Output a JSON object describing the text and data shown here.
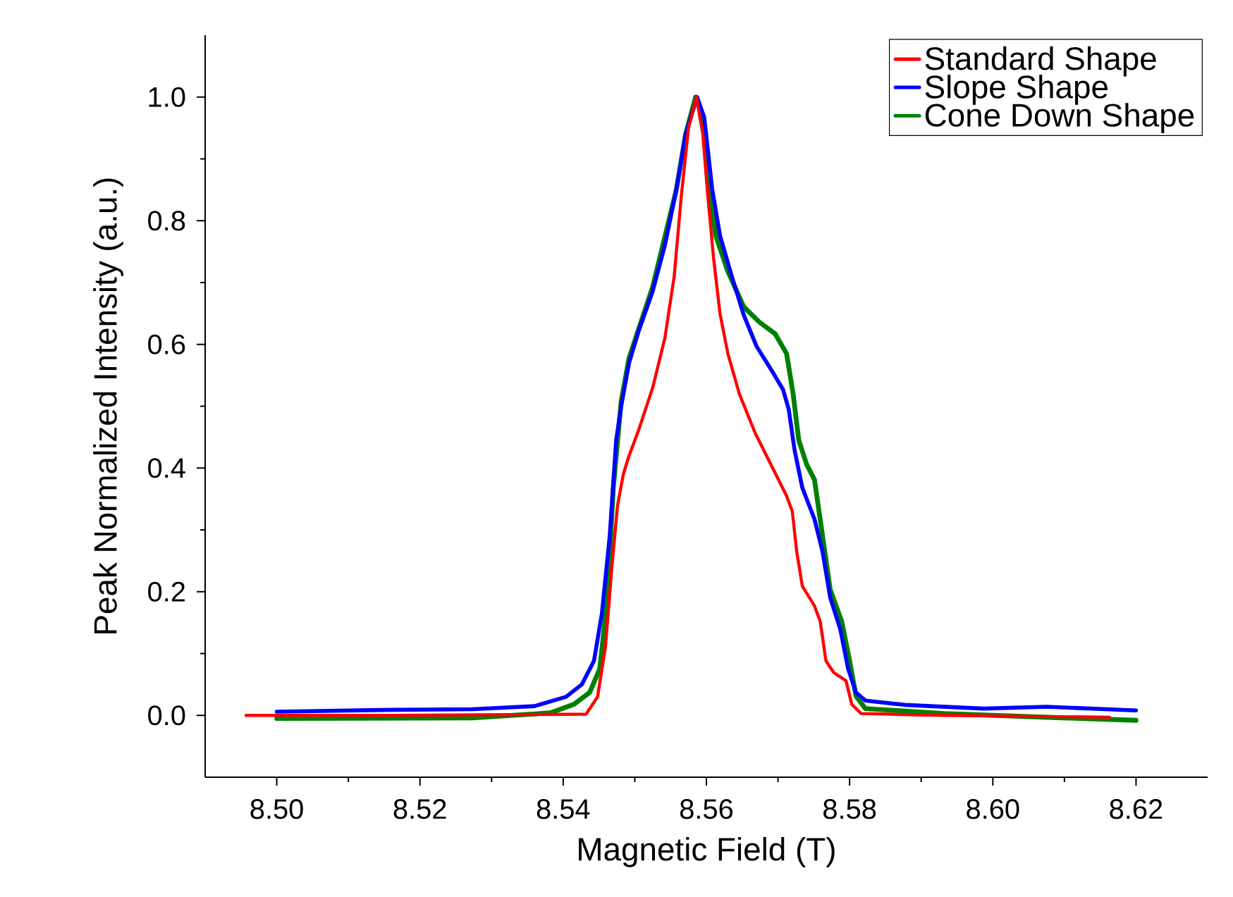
{
  "chart_data": {
    "type": "line",
    "xlabel": "Magnetic Field (T)",
    "ylabel": "Peak Normalized Intensity (a.u.)",
    "xlim": [
      8.49,
      8.63
    ],
    "ylim": [
      -0.1,
      1.1
    ],
    "xticks": [
      {
        "value": 8.5,
        "label": "8.50"
      },
      {
        "value": 8.52,
        "label": "8.52"
      },
      {
        "value": 8.54,
        "label": "8.54"
      },
      {
        "value": 8.56,
        "label": "8.56"
      },
      {
        "value": 8.58,
        "label": "8.58"
      },
      {
        "value": 8.6,
        "label": "8.60"
      },
      {
        "value": 8.62,
        "label": "8.62"
      }
    ],
    "yticks": [
      {
        "value": 0,
        "label": "0.0"
      },
      {
        "value": 0.2,
        "label": "0.2"
      },
      {
        "value": 0.4,
        "label": "0.4"
      },
      {
        "value": 0.6,
        "label": "0.6"
      },
      {
        "value": 0.8,
        "label": "0.8"
      },
      {
        "value": 1.0,
        "label": "1.0"
      }
    ],
    "legend": "top right",
    "grid": false,
    "series": [
      {
        "name": "Standard Shape",
        "color": "#ff0000",
        "x": [
          8.4957,
          8.5163,
          8.5432,
          8.5448,
          8.5459,
          8.5468,
          8.5476,
          8.5484,
          8.5492,
          8.5505,
          8.5525,
          8.5542,
          8.5555,
          8.5565,
          8.5575,
          8.5586,
          8.5595,
          8.5602,
          8.561,
          8.5619,
          8.563,
          8.5646,
          8.5668,
          8.569,
          8.5712,
          8.572,
          8.5726,
          8.5734,
          8.5751,
          8.5759,
          8.5767,
          8.5778,
          8.5795,
          8.5803,
          8.5816,
          8.5932,
          8.6163
        ],
        "values": [
          0,
          0,
          0.002,
          0.03,
          0.11,
          0.24,
          0.34,
          0.39,
          0.42,
          0.46,
          0.53,
          0.61,
          0.71,
          0.84,
          0.95,
          1.0,
          0.94,
          0.84,
          0.74,
          0.65,
          0.585,
          0.52,
          0.457,
          0.406,
          0.355,
          0.33,
          0.266,
          0.209,
          0.177,
          0.152,
          0.088,
          0.069,
          0.056,
          0.018,
          0.003,
          0,
          -0.003
        ]
      },
      {
        "name": "Slope Shape",
        "color": "#0000ff",
        "x": [
          8.5,
          8.5163,
          8.5273,
          8.536,
          8.5404,
          8.5426,
          8.5443,
          8.5454,
          8.5465,
          8.5474,
          8.5481,
          8.5492,
          8.5505,
          8.5525,
          8.5542,
          8.5558,
          8.5571,
          8.5587,
          8.5597,
          8.5608,
          8.5619,
          8.5635,
          8.5652,
          8.567,
          8.569,
          8.5707,
          8.5715,
          8.5723,
          8.5734,
          8.5751,
          8.5762,
          8.5773,
          8.5787,
          8.5798,
          8.5809,
          8.5822,
          8.5877,
          8.5987,
          8.6075,
          8.62
        ],
        "values": [
          0.006,
          0.009,
          0.01,
          0.015,
          0.03,
          0.05,
          0.088,
          0.164,
          0.29,
          0.445,
          0.5,
          0.57,
          0.62,
          0.686,
          0.76,
          0.85,
          0.94,
          1.0,
          0.967,
          0.852,
          0.776,
          0.712,
          0.648,
          0.597,
          0.56,
          0.527,
          0.495,
          0.43,
          0.368,
          0.317,
          0.266,
          0.19,
          0.139,
          0.075,
          0.037,
          0.024,
          0.017,
          0.011,
          0.014,
          0.008
        ]
      },
      {
        "name": "Cone Down Shape",
        "color": "#008000",
        "x": [
          8.5,
          8.5273,
          8.5382,
          8.5415,
          8.5437,
          8.5451,
          8.5462,
          8.547,
          8.5481,
          8.5492,
          8.5525,
          8.5558,
          8.5571,
          8.5585,
          8.5595,
          8.5602,
          8.5613,
          8.563,
          8.5652,
          8.5674,
          8.5696,
          8.5712,
          8.5721,
          8.5729,
          8.574,
          8.5751,
          8.5762,
          8.5773,
          8.5789,
          8.58,
          8.5809,
          8.5822,
          8.5932,
          8.6097,
          8.62
        ],
        "values": [
          -0.005,
          -0.004,
          0.004,
          0.018,
          0.037,
          0.075,
          0.19,
          0.368,
          0.508,
          0.578,
          0.693,
          0.85,
          0.94,
          1.0,
          0.967,
          0.865,
          0.776,
          0.718,
          0.661,
          0.636,
          0.617,
          0.585,
          0.521,
          0.445,
          0.406,
          0.381,
          0.292,
          0.203,
          0.152,
          0.088,
          0.031,
          0.011,
          0.003,
          -0.004,
          -0.008
        ]
      }
    ]
  }
}
